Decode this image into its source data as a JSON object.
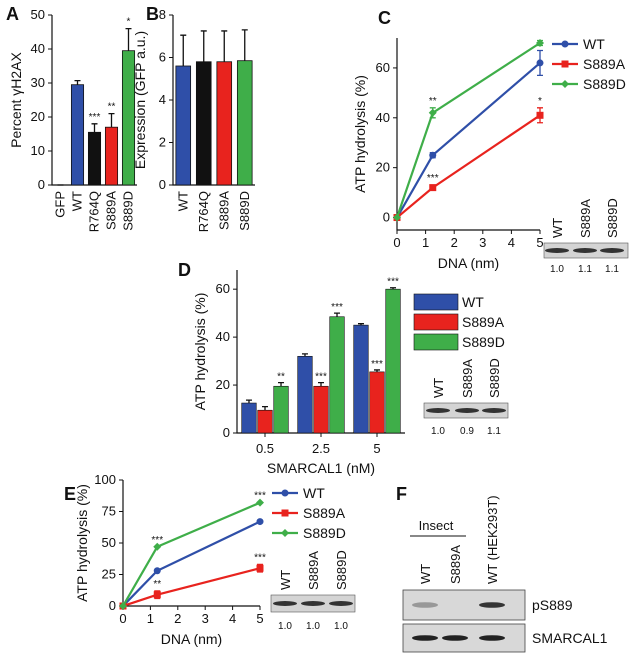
{
  "chart_data": [
    {
      "panel": "A",
      "type": "bar",
      "ylabel": "Percent γH2AX",
      "categories": [
        "GFP",
        "WT",
        "R764Q",
        "S889A",
        "S889D"
      ],
      "values": [
        0,
        29.5,
        15.5,
        17,
        39.5
      ],
      "errors": [
        0,
        1.2,
        2.5,
        4,
        6.5
      ],
      "colors": [
        "#2f4fa8",
        "#2f4fa8",
        "#111111",
        "#e8231e",
        "#3fae49"
      ],
      "significance": [
        null,
        null,
        "***",
        "**",
        "*"
      ],
      "ylim": [
        0,
        50
      ],
      "yticks": [
        0,
        10,
        20,
        30,
        40,
        50
      ]
    },
    {
      "panel": "B",
      "type": "bar",
      "ylabel": "Expression (GFP a.u.)",
      "categories": [
        "WT",
        "R764Q",
        "S889A",
        "S889D"
      ],
      "values": [
        5.6,
        5.8,
        5.8,
        5.85
      ],
      "errors": [
        1.45,
        1.45,
        1.45,
        1.45
      ],
      "colors": [
        "#2f4fa8",
        "#111111",
        "#e8231e",
        "#3fae49"
      ],
      "ylim": [
        0,
        8
      ],
      "yticks": [
        0,
        2,
        4,
        6,
        8
      ]
    },
    {
      "panel": "C",
      "type": "line",
      "ylabel": "ATP hydrolysis (%)",
      "xlabel": "DNA (nm)",
      "x": [
        0,
        1.25,
        5
      ],
      "series": [
        {
          "name": "WT",
          "color": "#2f4fa8",
          "values": [
            0,
            25,
            62
          ],
          "errors": [
            null,
            1,
            5
          ],
          "significance": [
            null,
            null,
            null
          ]
        },
        {
          "name": "S889A",
          "color": "#e8231e",
          "values": [
            0,
            12,
            41
          ],
          "errors": [
            null,
            1,
            3
          ],
          "significance": [
            null,
            "***",
            "*"
          ]
        },
        {
          "name": "S889D",
          "color": "#3fae49",
          "values": [
            0,
            42,
            70
          ],
          "errors": [
            null,
            2,
            1
          ],
          "significance": [
            null,
            "**",
            null
          ]
        }
      ],
      "xlim": [
        0,
        5
      ],
      "xticks": [
        0,
        1,
        2,
        3,
        4,
        5
      ],
      "ylim": [
        -5,
        72
      ],
      "yticks": [
        0,
        20,
        40,
        60
      ],
      "blot": {
        "lanes": [
          "WT",
          "S889A",
          "S889D"
        ],
        "ratios": [
          "1.0",
          "1.1",
          "1.1"
        ]
      }
    },
    {
      "panel": "D",
      "type": "bar",
      "ylabel": "ATP hydrolysis (%)",
      "xlabel": "SMARCAL1 (nM)",
      "categories": [
        "0.5",
        "2.5",
        "5"
      ],
      "series": [
        {
          "name": "WT",
          "color": "#2f4fa8",
          "values": [
            12.5,
            32,
            45
          ],
          "errors": [
            1.2,
            1,
            0.6
          ],
          "significance": [
            null,
            null,
            null
          ]
        },
        {
          "name": "S889A",
          "color": "#e8231e",
          "values": [
            9.5,
            19.5,
            25.5
          ],
          "errors": [
            1.5,
            1.5,
            0.8
          ],
          "significance": [
            null,
            "***",
            "***"
          ]
        },
        {
          "name": "S889D",
          "color": "#3fae49",
          "values": [
            19.5,
            48.5,
            60
          ],
          "errors": [
            1.5,
            1.5,
            0.6
          ],
          "significance": [
            "**",
            "***",
            "***"
          ]
        }
      ],
      "ylim": [
        0,
        68
      ],
      "yticks": [
        0,
        20,
        40,
        60
      ],
      "blot": {
        "lanes": [
          "WT",
          "S889A",
          "S889D"
        ],
        "ratios": [
          "1.0",
          "0.9",
          "1.1"
        ]
      }
    },
    {
      "panel": "E",
      "type": "line",
      "ylabel": "ATP hydrolysis (%)",
      "xlabel": "DNA (nm)",
      "x": [
        0,
        1.25,
        5
      ],
      "series": [
        {
          "name": "WT",
          "color": "#2f4fa8",
          "values": [
            0,
            28,
            67
          ],
          "errors": [
            null,
            null,
            null
          ],
          "significance": [
            null,
            null,
            null
          ]
        },
        {
          "name": "S889A",
          "color": "#e8231e",
          "values": [
            0,
            9,
            30
          ],
          "errors": [
            null,
            3,
            3
          ],
          "significance": [
            null,
            "**",
            "***"
          ]
        },
        {
          "name": "S889D",
          "color": "#3fae49",
          "values": [
            0,
            47,
            82
          ],
          "errors": [
            null,
            null,
            null
          ],
          "significance": [
            null,
            "***",
            "***"
          ]
        }
      ],
      "xlim": [
        0,
        5
      ],
      "xticks": [
        0,
        1,
        2,
        3,
        4,
        5
      ],
      "ylim": [
        0,
        100
      ],
      "yticks": [
        0,
        25,
        50,
        75,
        100
      ],
      "blot": {
        "lanes": [
          "WT",
          "S889A",
          "S889D"
        ],
        "ratios": [
          "1.0",
          "1.0",
          "1.0"
        ]
      }
    }
  ],
  "panel_f": {
    "panel": "F",
    "group": "Insect",
    "lanes": [
      "WT",
      "S889A",
      "WT (HEK293T)"
    ],
    "rows": [
      "pS889",
      "SMARCAL1"
    ]
  }
}
